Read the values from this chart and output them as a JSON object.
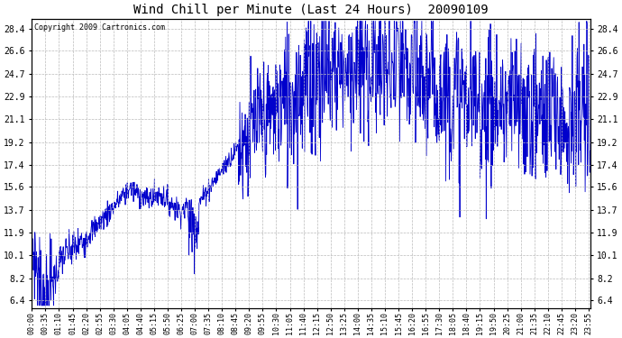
{
  "title": "Wind Chill per Minute (Last 24 Hours)  20090109",
  "copyright_text": "Copyright 2009 Cartronics.com",
  "background_color": "#ffffff",
  "plot_bg_color": "#ffffff",
  "line_color": "#0000cc",
  "line_width": 0.6,
  "yticks": [
    6.4,
    8.2,
    10.1,
    11.9,
    13.7,
    15.6,
    17.4,
    19.2,
    21.1,
    22.9,
    24.7,
    26.6,
    28.4
  ],
  "ylim": [
    5.8,
    29.2
  ],
  "grid_color": "#bbbbbb",
  "grid_style": "--",
  "total_minutes": 1440,
  "x_tick_interval": 35,
  "x_tick_labels": [
    "00:00",
    "00:35",
    "01:10",
    "01:45",
    "02:20",
    "02:55",
    "03:30",
    "04:05",
    "04:40",
    "05:15",
    "05:50",
    "06:25",
    "07:00",
    "07:35",
    "08:10",
    "08:45",
    "09:20",
    "09:55",
    "10:30",
    "11:05",
    "11:40",
    "12:15",
    "12:50",
    "13:25",
    "14:00",
    "14:35",
    "15:10",
    "15:45",
    "16:20",
    "16:55",
    "17:30",
    "18:05",
    "18:40",
    "19:15",
    "19:50",
    "20:25",
    "21:00",
    "21:35",
    "22:10",
    "22:45",
    "23:20",
    "23:55"
  ],
  "figwidth": 6.9,
  "figheight": 3.75,
  "dpi": 100
}
